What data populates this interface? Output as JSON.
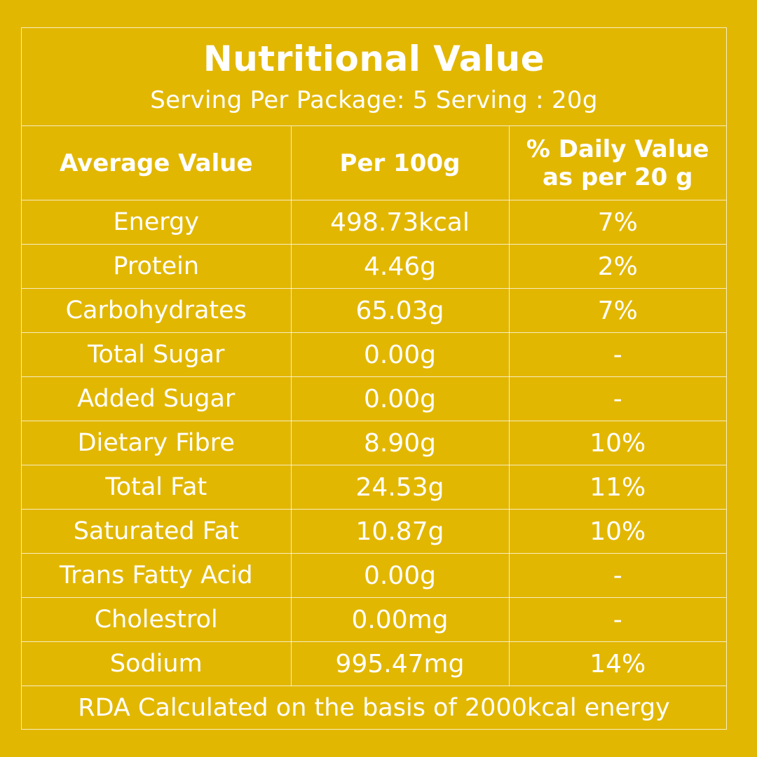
{
  "title": "Nutritional Value",
  "subtitle": "Serving Per Package: 5 Serving : 20g",
  "headers": [
    "Average Value",
    "Per 100g",
    "% Daily Value as per 20 g"
  ],
  "rows": [
    {
      "name": "Energy",
      "per100": "498.73kcal",
      "dv": "7%"
    },
    {
      "name": "Protein",
      "per100": "4.46g",
      "dv": "2%"
    },
    {
      "name": "Carbohydrates",
      "per100": "65.03g",
      "dv": "7%"
    },
    {
      "name": "Total Sugar",
      "per100": "0.00g",
      "dv": "-"
    },
    {
      "name": "Added Sugar",
      "per100": "0.00g",
      "dv": "-"
    },
    {
      "name": "Dietary Fibre",
      "per100": "8.90g",
      "dv": "10%"
    },
    {
      "name": "Total Fat",
      "per100": "24.53g",
      "dv": "11%"
    },
    {
      "name": "Saturated Fat",
      "per100": "10.87g",
      "dv": "10%"
    },
    {
      "name": "Trans Fatty Acid",
      "per100": "0.00g",
      "dv": "-"
    },
    {
      "name": "Cholestrol",
      "per100": "0.00mg",
      "dv": "-"
    },
    {
      "name": "Sodium",
      "per100": "995.47mg",
      "dv": "14%"
    }
  ],
  "footer": "RDA Calculated on the basis of 2000kcal energy",
  "colors": {
    "background": "#E2B702",
    "text": "#FFFFFF"
  }
}
